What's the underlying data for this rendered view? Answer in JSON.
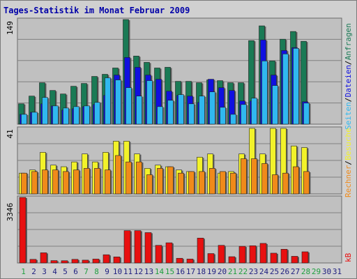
{
  "title": "Tages-Statistik im Monat Februar 2009",
  "colors": {
    "anfragen": "#1a7a55",
    "dateien": "#1010e0",
    "seiten": "#30b8f0",
    "besuche": "#f2f22a",
    "rechner": "#f08a1a",
    "kb": "#e81010",
    "day_weekday": "#202080",
    "day_weekend": "#20a040",
    "panel_bg": "#c0c0c0",
    "grid": "#808080"
  },
  "chart_data": [
    {
      "type": "bar",
      "title": "Tages-Statistik im Monat Februar 2009",
      "categories": [
        "1",
        "2",
        "3",
        "4",
        "5",
        "6",
        "7",
        "8",
        "9",
        "10",
        "11",
        "12",
        "13",
        "14",
        "15",
        "16",
        "17",
        "18",
        "19",
        "20",
        "21",
        "22",
        "23",
        "24",
        "25",
        "26",
        "27",
        "28",
        "29",
        "30",
        "31"
      ],
      "weekend_days": [
        "1",
        "7",
        "8",
        "14",
        "15",
        "21",
        "22",
        "28",
        "29"
      ],
      "ymax_label": "149",
      "ylim": [
        0,
        149
      ],
      "series": [
        {
          "name": "Anfragen",
          "color": "#1a7a55",
          "values": [
            29,
            40,
            59,
            48,
            43,
            54,
            58,
            68,
            71,
            80,
            149,
            97,
            88,
            80,
            81,
            61,
            61,
            59,
            63,
            62,
            59,
            59,
            119,
            140,
            90,
            121,
            132,
            118,
            0,
            0,
            0
          ]
        },
        {
          "name": "Dateien",
          "color": "#1010e0",
          "values": [
            14,
            17,
            29,
            26,
            20,
            22,
            25,
            28,
            41,
            70,
            95,
            81,
            70,
            64,
            47,
            41,
            40,
            31,
            64,
            52,
            48,
            33,
            33,
            120,
            70,
            105,
            109,
            32,
            0,
            0,
            0
          ]
        },
        {
          "name": "Seiten",
          "color": "#30b8f0",
          "values": [
            14,
            17,
            38,
            26,
            23,
            25,
            26,
            31,
            66,
            63,
            52,
            40,
            62,
            25,
            34,
            42,
            29,
            40,
            46,
            24,
            14,
            28,
            37,
            90,
            55,
            100,
            108,
            30,
            0,
            0,
            0
          ]
        }
      ],
      "side_labels": [
        "Anfragen",
        "Dateien",
        "Seiten"
      ]
    },
    {
      "type": "bar",
      "ymax_label": "41",
      "ylim": [
        0,
        41
      ],
      "series": [
        {
          "name": "Besuche",
          "color": "#f2f22a",
          "values": [
            13,
            15,
            26,
            18,
            17,
            20,
            25,
            20,
            26,
            33,
            33,
            25,
            16,
            18,
            17,
            15,
            14,
            23,
            25,
            13,
            14,
            25,
            41,
            25,
            41,
            41,
            30,
            29,
            0,
            0,
            0
          ]
        },
        {
          "name": "Rechner",
          "color": "#f08a1a",
          "values": [
            13,
            14,
            15,
            15,
            14,
            15,
            16,
            16,
            15,
            24,
            20,
            20,
            12,
            16,
            17,
            13,
            14,
            14,
            16,
            14,
            13,
            22,
            22,
            19,
            12,
            13,
            17,
            14,
            0,
            0,
            0
          ]
        }
      ],
      "side_labels": [
        "Rechner",
        "Besuche"
      ]
    },
    {
      "type": "bar",
      "ymax_label": "3346",
      "ylim": [
        0,
        3346
      ],
      "series": [
        {
          "name": "kB",
          "color": "#e81010",
          "values": [
            3346,
            185,
            520,
            121,
            115,
            185,
            145,
            200,
            420,
            310,
            1650,
            1650,
            1550,
            900,
            1030,
            240,
            200,
            1270,
            480,
            900,
            320,
            850,
            880,
            1000,
            500,
            700,
            340,
            570,
            0,
            0,
            0
          ]
        }
      ],
      "side_labels": [
        "kB"
      ]
    }
  ]
}
